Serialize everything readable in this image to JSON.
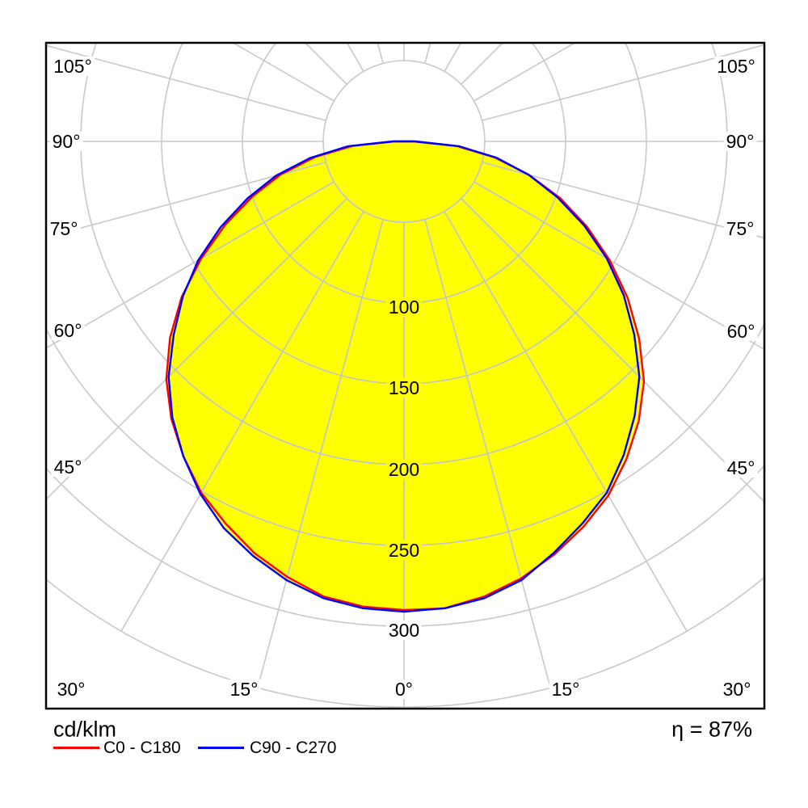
{
  "diagram": {
    "unit_label": "cd/klm",
    "efficiency_label": "η = 87%",
    "nadir_label": "0°",
    "angle_labels": [
      "105°",
      "90°",
      "75°",
      "60°",
      "45°",
      "30°",
      "15°"
    ],
    "radial_tick_labels": [
      "100",
      "150",
      "200",
      "250",
      "300"
    ],
    "legend": [
      {
        "label": "C0 - C180",
        "color": "#ff0000"
      },
      {
        "label": "C90 - C270",
        "color": "#0000ff"
      }
    ]
  },
  "chart_data": {
    "type": "line",
    "subtype": "polar-photometric-luminous-intensity",
    "title": "",
    "units": "cd/klm",
    "grid": true,
    "legend_position": "bottom-left",
    "efficiency_percent": 87,
    "angular_ticks_deg": [
      0,
      15,
      30,
      45,
      60,
      75,
      90,
      105
    ],
    "radial_axis": {
      "tick_values": [
        100,
        150,
        200,
        250,
        300
      ],
      "circle_step": 50,
      "min_circle": 50,
      "max_circle": 350
    },
    "angles_deg": [
      -90,
      -85,
      -80,
      -75,
      -70,
      -65,
      -60,
      -55,
      -50,
      -45,
      -40,
      -35,
      -30,
      -25,
      -20,
      -15,
      -10,
      -5,
      0,
      5,
      10,
      15,
      20,
      25,
      30,
      35,
      40,
      45,
      50,
      55,
      60,
      65,
      70,
      75,
      80,
      85,
      90
    ],
    "series": [
      {
        "name": "C0 - C180",
        "color": "#ff0000",
        "values": [
          6,
          32,
          56,
          79,
          100,
          122,
          145,
          168,
          189,
          208,
          224,
          238,
          251,
          261,
          271,
          279,
          286,
          289,
          290,
          290,
          286,
          280,
          272,
          263,
          253,
          240,
          226,
          210,
          190,
          169,
          147,
          125,
          103,
          80,
          57,
          33,
          6
        ]
      },
      {
        "name": "C90 - C270",
        "color": "#0000ff",
        "values": [
          7,
          35,
          59,
          82,
          103,
          125,
          147,
          167,
          186,
          206,
          223,
          238,
          252,
          264,
          273,
          281,
          287,
          290,
          291,
          290,
          287,
          281,
          271,
          261,
          251,
          237,
          222,
          206,
          186,
          166,
          145,
          123,
          101,
          80,
          58,
          34,
          7
        ]
      }
    ]
  },
  "colors": {
    "background": "#ffffff",
    "frame": "#000000",
    "grid_outer": "#c9c9c9",
    "grid_inner": "#bcc4d8",
    "fill": "#ffff00",
    "text": "#000000"
  }
}
